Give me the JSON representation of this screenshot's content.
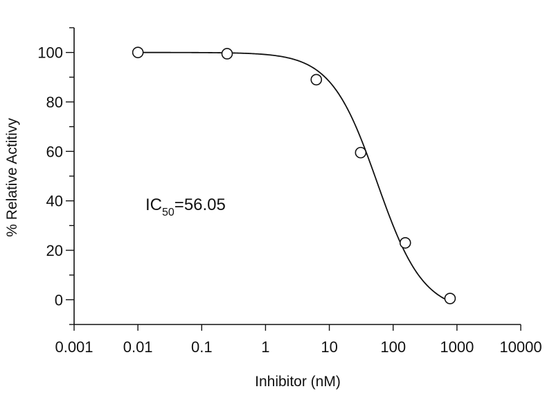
{
  "chart_data": {
    "type": "scatter",
    "xscale": "log",
    "xlabel": "Inhibitor (nM)",
    "ylabel": "% Relative Actitivy",
    "xlim": [
      0.001,
      10000
    ],
    "ylim": [
      -10,
      110
    ],
    "x_ticks": [
      0.001,
      0.01,
      0.1,
      1,
      10,
      100,
      1000,
      10000
    ],
    "x_tick_labels": [
      "0.001",
      "0.01",
      "0.1",
      "1",
      "10",
      "100",
      "1000",
      "10000"
    ],
    "y_ticks": [
      0,
      20,
      40,
      60,
      80,
      100
    ],
    "y_tick_labels": [
      "0",
      "20",
      "40",
      "60",
      "80",
      "100"
    ],
    "series": [
      {
        "x": [
          0.01,
          0.25,
          6.25,
          31,
          155,
          780
        ],
        "y": [
          100,
          99.5,
          89,
          59.5,
          23,
          0.5
        ]
      }
    ],
    "fit": {
      "top": 100,
      "bottom": -5,
      "ic50": 56.05,
      "hill": 1.2
    },
    "annotation": {
      "main": "IC",
      "sub": "50",
      "value": "=56.05"
    },
    "grid": false,
    "legend": "none"
  }
}
